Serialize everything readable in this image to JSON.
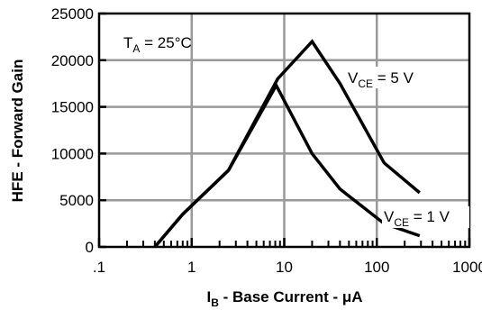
{
  "chart_data": {
    "type": "line",
    "xlabel_main": "I",
    "xlabel_sub": "B",
    "xlabel_rest": " - Base Current - μA",
    "ylabel": "HFE - Forward Gain",
    "x_scale": "log",
    "xlim": [
      0.1,
      1000
    ],
    "ylim": [
      0,
      25000
    ],
    "grid": true,
    "x_ticks": [
      0.1,
      1,
      10,
      100,
      1000
    ],
    "x_tick_labels": [
      ".1",
      "1",
      "10",
      "100",
      "1000"
    ],
    "y_ticks": [
      0,
      5000,
      10000,
      15000,
      20000,
      25000
    ],
    "y_tick_labels": [
      "0",
      "5000",
      "10000",
      "15000",
      "20000",
      "25000"
    ],
    "annotations": {
      "temp_main": "T",
      "temp_sub": "A",
      "temp_rest": " = 25°C"
    },
    "series": [
      {
        "name_main": "V",
        "name_sub": "CE",
        "name_rest": " = 5 V",
        "x": [
          0.4,
          0.8,
          2.5,
          8.5,
          20,
          40,
          120,
          290
        ],
        "y": [
          0,
          3500,
          8200,
          18000,
          22000,
          17500,
          9000,
          5800
        ]
      },
      {
        "name_main": "V",
        "name_sub": "CE",
        "name_rest": " = 1 V",
        "x": [
          0.4,
          0.8,
          2.5,
          8.2,
          20,
          40,
          120,
          290
        ],
        "y": [
          0,
          3500,
          8200,
          17300,
          10000,
          6200,
          2500,
          1200
        ]
      }
    ]
  }
}
